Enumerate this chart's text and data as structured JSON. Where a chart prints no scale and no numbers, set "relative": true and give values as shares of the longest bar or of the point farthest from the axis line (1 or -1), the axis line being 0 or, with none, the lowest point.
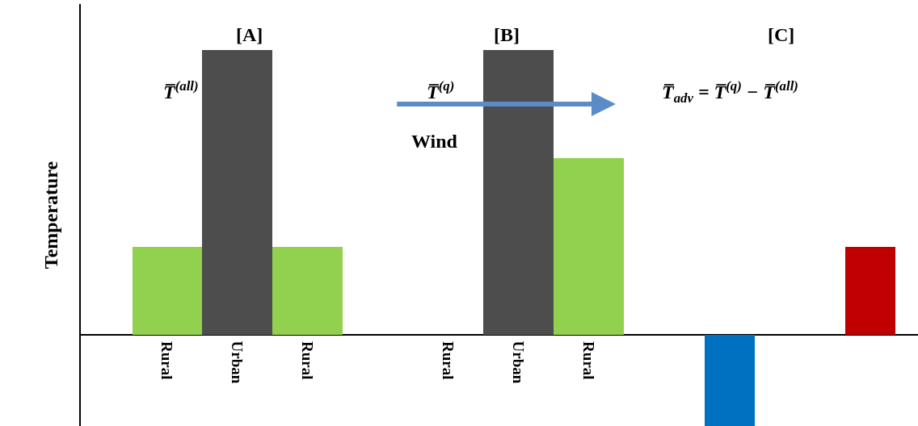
{
  "chart_data": {
    "type": "bar",
    "relative": true,
    "ylabel": "Temperature",
    "categories": [
      "Rural",
      "Urban",
      "Rural",
      null,
      "Rural",
      "Urban",
      "Rural",
      null,
      null,
      null,
      null
    ],
    "values": [
      0.31,
      1,
      0.31,
      null,
      0,
      1,
      0.62,
      null,
      -0.32,
      null,
      0.31
    ],
    "colors": [
      "#92d050",
      "#4d4d4d",
      "#92d050",
      "#ffffff",
      "#92d050",
      "#4d4d4d",
      "#92d050",
      "#ffffff",
      "#0070c0",
      "#ffffff",
      "#c00000"
    ],
    "annotations": [
      "[A]",
      "[B]",
      "[C]",
      "T̅$^{(all)}$",
      "T̅$^{(q)}$",
      "T̅$_{adv}$ = T̅$^{(q)}$ − T̅$^{(all)}$",
      "Wind"
    ],
    "legend": false
  }
}
